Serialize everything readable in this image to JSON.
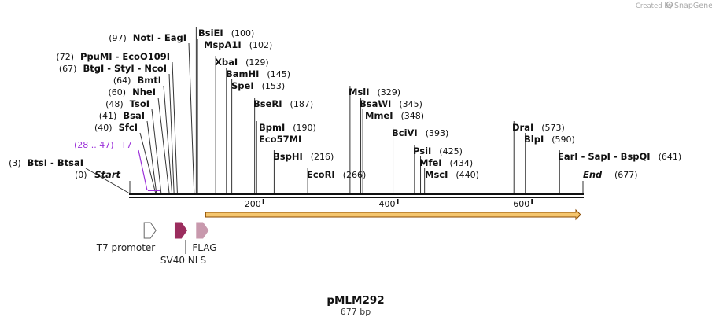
{
  "credit": {
    "prefix": "Created by",
    "brand": "SnapGene"
  },
  "title": "pMLM292",
  "subtitle": "677 bp",
  "sites": [
    {
      "name": "BtsI - BtsaI",
      "pos": "(3)",
      "bp": 3
    },
    {
      "name": "SfcI",
      "pos": "(40)",
      "bp": 40
    },
    {
      "name": "BsaI",
      "pos": "(41)",
      "bp": 41
    },
    {
      "name": "TsoI",
      "pos": "(48)",
      "bp": 48
    },
    {
      "name": "NheI",
      "pos": "(60)",
      "bp": 60
    },
    {
      "name": "BmtI",
      "pos": "(64)",
      "bp": 64
    },
    {
      "name": "BtgI - StyI - NcoI",
      "pos": "(67)",
      "bp": 67
    },
    {
      "name": "PpuMI - EcoO109I",
      "pos": "(72)",
      "bp": 72
    },
    {
      "name": "NotI - EagI",
      "pos": "(97)",
      "bp": 97
    },
    {
      "name": "BsiEI",
      "pos": "(100)",
      "bp": 100
    },
    {
      "name": "MspA1I",
      "pos": "(102)",
      "bp": 102
    },
    {
      "name": "XbaI",
      "pos": "(129)",
      "bp": 129
    },
    {
      "name": "BamHI",
      "pos": "(145)",
      "bp": 145
    },
    {
      "name": "SpeI",
      "pos": "(153)",
      "bp": 153
    },
    {
      "name": "BseRI",
      "pos": "(187)",
      "bp": 187
    },
    {
      "name": "BpmI",
      "pos": "(190)",
      "bp": 190
    },
    {
      "name": "Eco57MI",
      "pos": "",
      "bp": 190
    },
    {
      "name": "BspHI",
      "pos": "(216)",
      "bp": 216
    },
    {
      "name": "EcoRI",
      "pos": "(266)",
      "bp": 266
    },
    {
      "name": "MslI",
      "pos": "(329)",
      "bp": 329
    },
    {
      "name": "BsaWI",
      "pos": "(345)",
      "bp": 345
    },
    {
      "name": "MmeI",
      "pos": "(348)",
      "bp": 348
    },
    {
      "name": "BciVI",
      "pos": "(393)",
      "bp": 393
    },
    {
      "name": "PsiI",
      "pos": "(425)",
      "bp": 425
    },
    {
      "name": "MfeI",
      "pos": "(434)",
      "bp": 434
    },
    {
      "name": "MscI",
      "pos": "(440)",
      "bp": 440
    },
    {
      "name": "DraI",
      "pos": "(573)",
      "bp": 573
    },
    {
      "name": "BlpI",
      "pos": "(590)",
      "bp": 590
    },
    {
      "name": "EarI - SapI - BspQI",
      "pos": "(641)",
      "bp": 641
    }
  ],
  "ends": [
    {
      "name": "Start",
      "pos": "(0)",
      "bp": 0
    },
    {
      "name": "End",
      "pos": "(677)",
      "bp": 677
    }
  ],
  "primer": {
    "range": "(28 .. 47)",
    "name": "T7",
    "start": 28,
    "end": 47
  },
  "ticks": [
    {
      "label": "200",
      "bp": 200
    },
    {
      "label": "400",
      "bp": 400
    },
    {
      "label": "600",
      "bp": 600
    }
  ],
  "orf": {
    "start": 114,
    "end": 677
  },
  "features": [
    {
      "name": "T7 promoter",
      "start": 26,
      "end": 45,
      "color": "#ffffff"
    },
    {
      "name": "SV40 NLS",
      "start": 72,
      "end": 93,
      "color": "#9b2d5e"
    },
    {
      "name": "FLAG",
      "start": 104,
      "end": 127,
      "color": "#c899ad"
    }
  ],
  "colors": {
    "primer": "#9b30d9",
    "orf_fill": "#f5c66e",
    "orf_line": "#8a4a00"
  }
}
